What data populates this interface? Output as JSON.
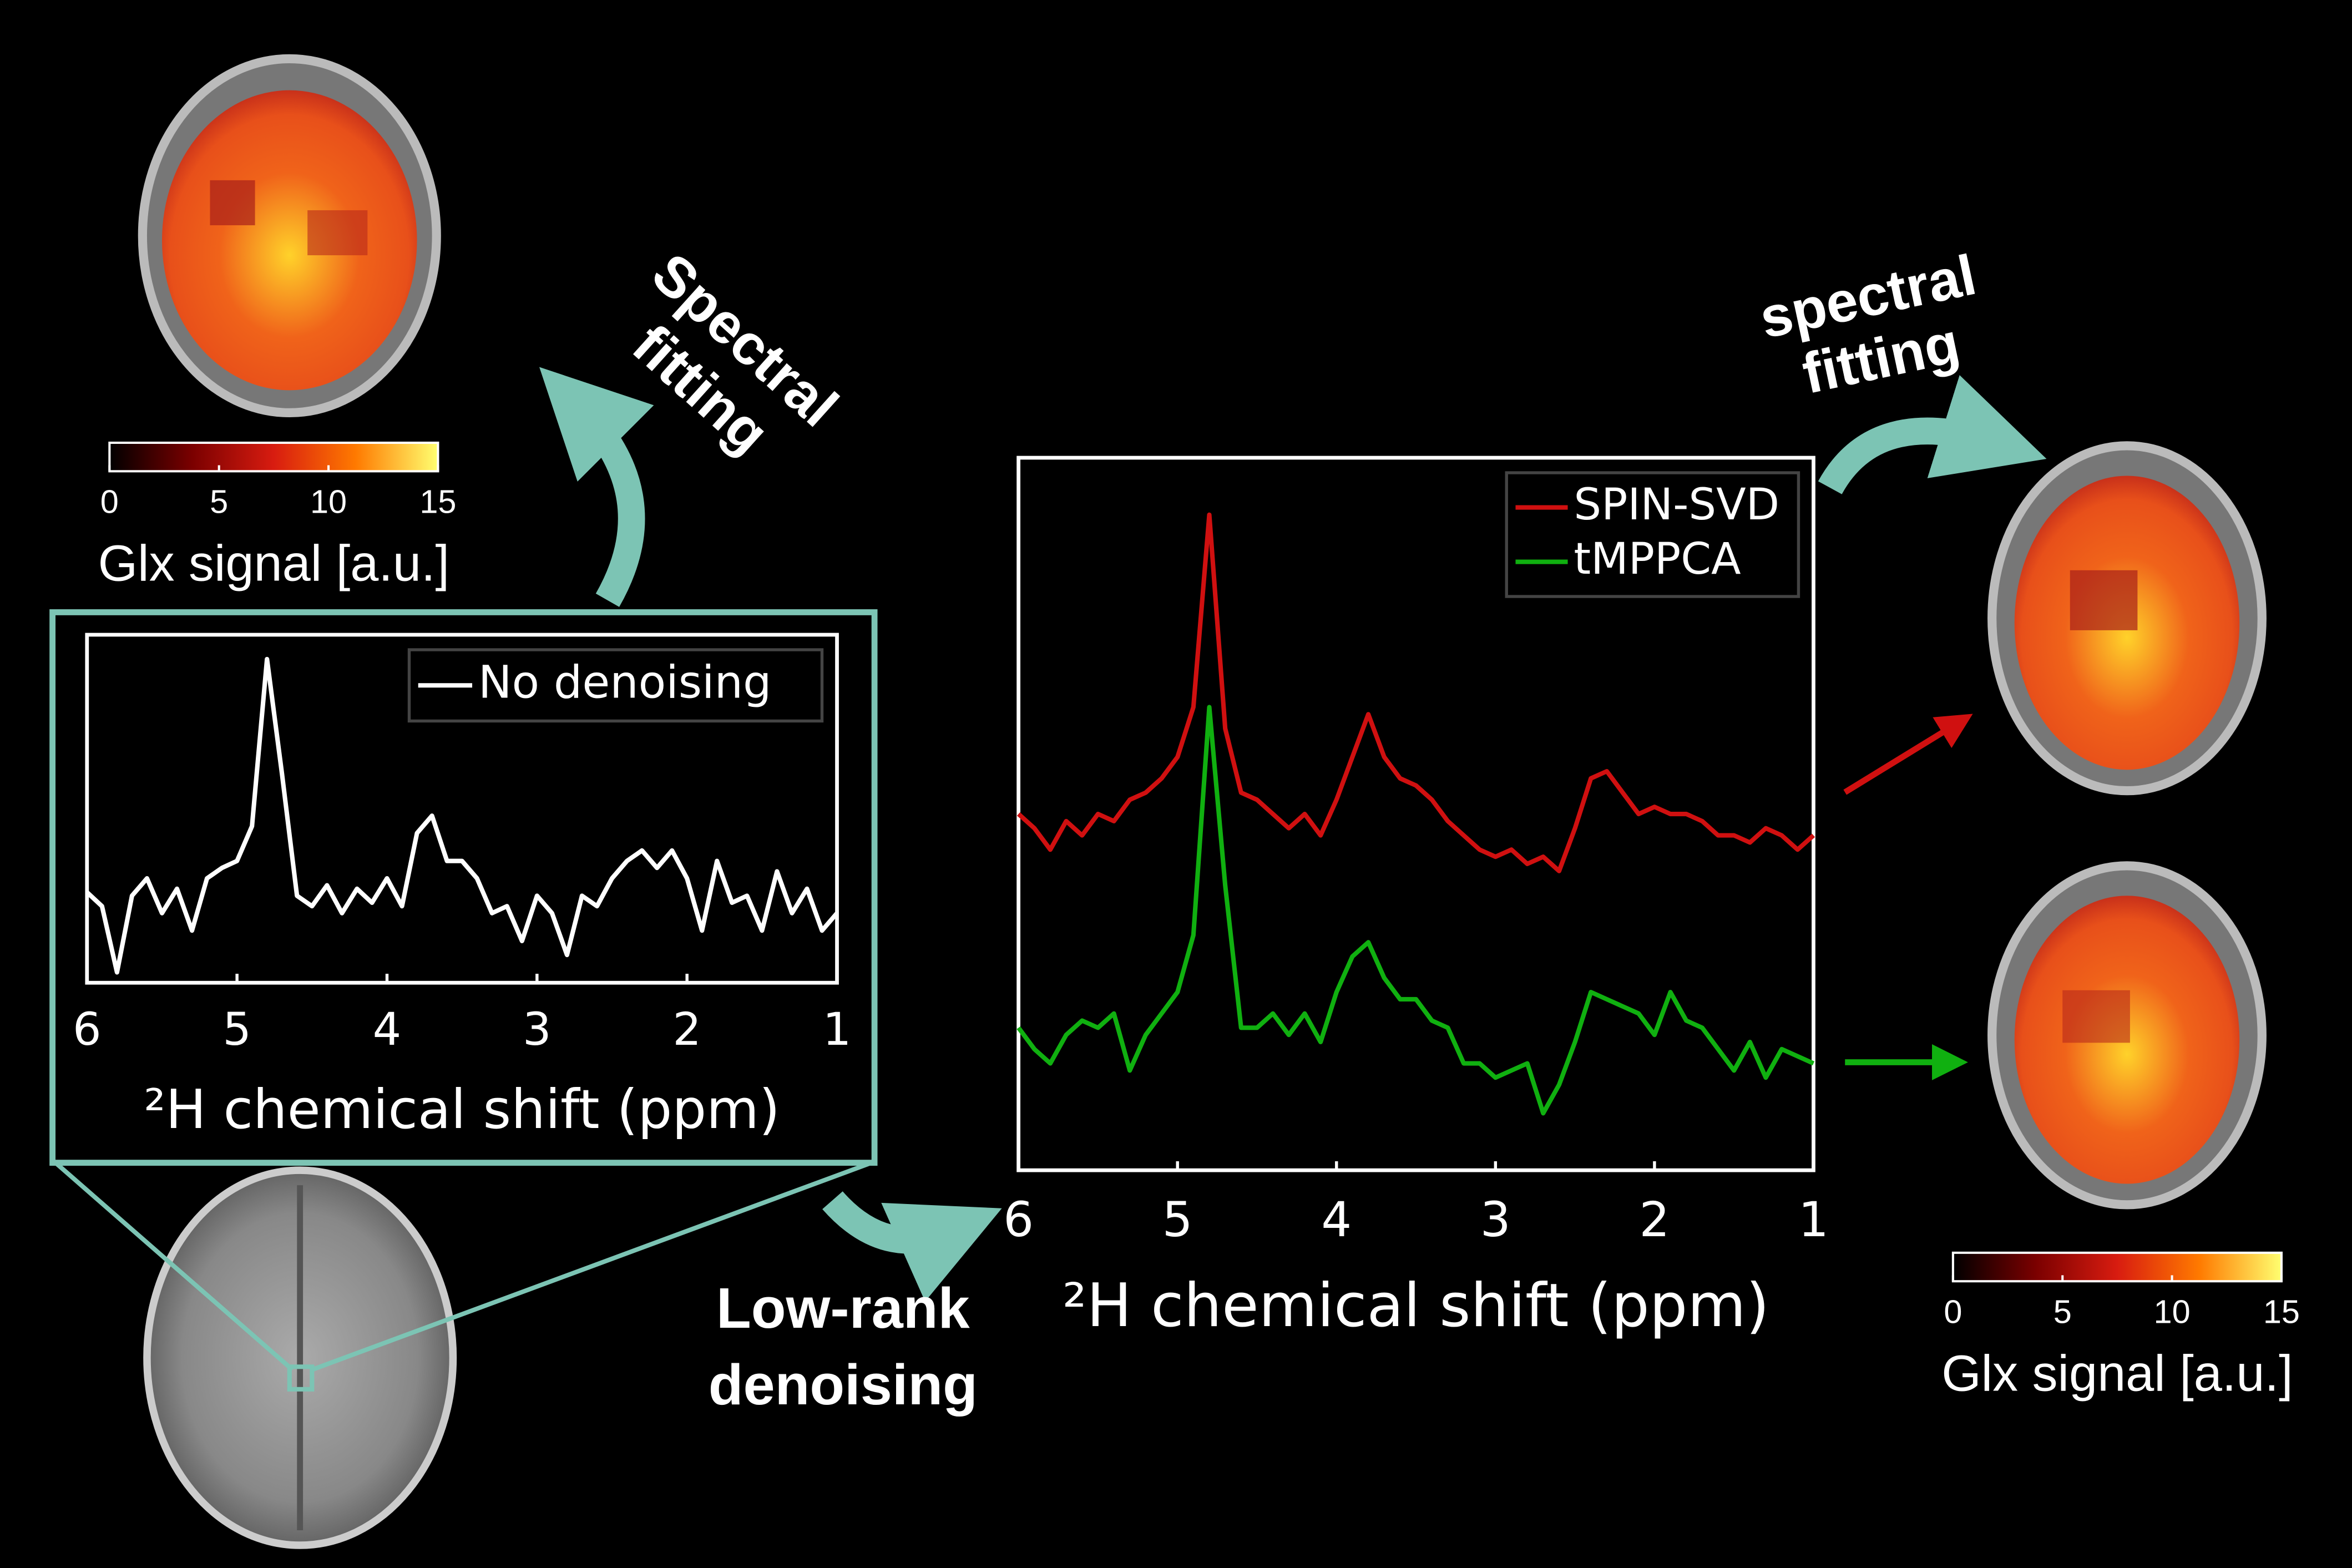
{
  "chart_data": [
    {
      "type": "line",
      "xlabel": "²H chemical shift (ppm)",
      "x": [
        6.0,
        5.9,
        5.8,
        5.7,
        5.6,
        5.5,
        5.4,
        5.3,
        5.2,
        5.1,
        5.0,
        4.9,
        4.8,
        4.7,
        4.6,
        4.5,
        4.4,
        4.3,
        4.2,
        4.1,
        4.0,
        3.9,
        3.8,
        3.7,
        3.6,
        3.5,
        3.4,
        3.3,
        3.2,
        3.1,
        3.0,
        2.9,
        2.8,
        2.7,
        2.6,
        2.5,
        2.4,
        2.3,
        2.2,
        2.1,
        2.0,
        1.9,
        1.8,
        1.7,
        1.6,
        1.5,
        1.4,
        1.3,
        1.2,
        1.1,
        1.0
      ],
      "xlim": [
        6,
        1
      ],
      "xticks": [
        6,
        5,
        4,
        3,
        2,
        1
      ],
      "ylim": [
        0,
        1
      ],
      "legend": "upper right",
      "series": [
        {
          "name": "No denoising",
          "color": "#ffffff",
          "values": [
            0.26,
            0.22,
            0.03,
            0.25,
            0.3,
            0.2,
            0.27,
            0.15,
            0.3,
            0.33,
            0.35,
            0.45,
            0.93,
            0.6,
            0.25,
            0.22,
            0.28,
            0.2,
            0.27,
            0.23,
            0.3,
            0.22,
            0.43,
            0.48,
            0.35,
            0.35,
            0.3,
            0.2,
            0.22,
            0.12,
            0.25,
            0.2,
            0.08,
            0.25,
            0.22,
            0.3,
            0.35,
            0.38,
            0.33,
            0.38,
            0.3,
            0.15,
            0.35,
            0.23,
            0.25,
            0.15,
            0.32,
            0.2,
            0.27,
            0.15,
            0.2
          ]
        }
      ]
    },
    {
      "type": "line",
      "xlabel": "²H chemical shift (ppm)",
      "x": [
        6.0,
        5.9,
        5.8,
        5.7,
        5.6,
        5.5,
        5.4,
        5.3,
        5.2,
        5.1,
        5.0,
        4.9,
        4.8,
        4.7,
        4.6,
        4.5,
        4.4,
        4.3,
        4.2,
        4.1,
        4.0,
        3.9,
        3.8,
        3.7,
        3.6,
        3.5,
        3.4,
        3.3,
        3.2,
        3.1,
        3.0,
        2.9,
        2.8,
        2.7,
        2.6,
        2.5,
        2.4,
        2.3,
        2.2,
        2.1,
        2.0,
        1.9,
        1.8,
        1.7,
        1.6,
        1.5,
        1.4,
        1.3,
        1.2,
        1.1,
        1.0
      ],
      "xlim": [
        6,
        1
      ],
      "xticks": [
        6,
        5,
        4,
        3,
        2,
        1
      ],
      "ylim": [
        0,
        1
      ],
      "legend": "upper right",
      "series": [
        {
          "name": "SPIN-SVD",
          "color": "#d01010",
          "values": [
            0.5,
            0.48,
            0.45,
            0.49,
            0.47,
            0.5,
            0.49,
            0.52,
            0.53,
            0.55,
            0.58,
            0.65,
            0.92,
            0.62,
            0.53,
            0.52,
            0.5,
            0.48,
            0.5,
            0.47,
            0.52,
            0.58,
            0.64,
            0.58,
            0.55,
            0.54,
            0.52,
            0.49,
            0.47,
            0.45,
            0.44,
            0.45,
            0.43,
            0.44,
            0.42,
            0.48,
            0.55,
            0.56,
            0.53,
            0.5,
            0.51,
            0.5,
            0.5,
            0.49,
            0.47,
            0.47,
            0.46,
            0.48,
            0.47,
            0.45,
            0.47
          ]
        },
        {
          "name": "tMPPCA",
          "color": "#10b010",
          "values": [
            0.2,
            0.17,
            0.15,
            0.19,
            0.21,
            0.2,
            0.22,
            0.14,
            0.19,
            0.22,
            0.25,
            0.33,
            0.65,
            0.4,
            0.2,
            0.2,
            0.22,
            0.19,
            0.22,
            0.18,
            0.25,
            0.3,
            0.32,
            0.27,
            0.24,
            0.24,
            0.21,
            0.2,
            0.15,
            0.15,
            0.13,
            0.14,
            0.15,
            0.08,
            0.12,
            0.18,
            0.25,
            0.24,
            0.23,
            0.22,
            0.19,
            0.25,
            0.21,
            0.2,
            0.17,
            0.14,
            0.18,
            0.13,
            0.17,
            0.16,
            0.15
          ]
        }
      ]
    },
    {
      "type": "colorbar",
      "label": "Glx signal [a.u.]",
      "xlim": [
        0,
        15
      ],
      "xticks": [
        0,
        5,
        10,
        15
      ],
      "colors": [
        "#000000",
        "#7a0000",
        "#d81c10",
        "#ff7a00",
        "#ffff70"
      ]
    },
    {
      "type": "colorbar",
      "label": "Glx signal [a.u.]",
      "xlim": [
        0,
        15
      ],
      "xticks": [
        0,
        5,
        10,
        15
      ],
      "colors": [
        "#000000",
        "#7a0000",
        "#d81c10",
        "#ff7a00",
        "#ffff70"
      ]
    }
  ],
  "annotations": [
    {
      "lines": [
        "Spectral",
        "fitting"
      ]
    },
    {
      "lines": [
        "spectral",
        "fitting"
      ]
    },
    {
      "lines": [
        "Low-rank",
        "denoising"
      ]
    }
  ]
}
